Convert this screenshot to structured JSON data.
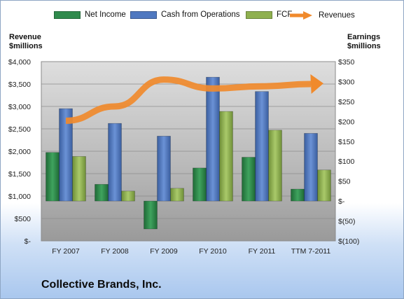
{
  "chart_data": {
    "type": "bar",
    "categories": [
      "FY 2007",
      "FY 2008",
      "FY 2009",
      "FY 2010",
      "FY 2011",
      "TTM 7-2011"
    ],
    "series": [
      {
        "name": "Net Income",
        "axis": "right",
        "color": "#2f8a4c",
        "values": [
          122,
          42,
          -70,
          83,
          110,
          30
        ]
      },
      {
        "name": "Cash from Operations",
        "axis": "right",
        "color": "#4f78c0",
        "values": [
          232,
          195,
          163,
          311,
          275,
          170
        ]
      },
      {
        "name": "FCF",
        "axis": "right",
        "color": "#8fb04f",
        "values": [
          112,
          25,
          32,
          225,
          178,
          78
        ]
      },
      {
        "name": "Revenues",
        "axis": "left",
        "type": "line",
        "color": "#f08a2c",
        "values": [
          2680,
          3000,
          3600,
          3400,
          3450,
          3500
        ]
      }
    ],
    "left_axis": {
      "title_line1": "Revenue",
      "title_line2": "$millions",
      "ylim": [
        0,
        4000
      ],
      "ticks": [
        0,
        500,
        1000,
        1500,
        2000,
        2500,
        3000,
        3500,
        4000
      ],
      "tick_labels": [
        "$-",
        "$500",
        "$1,000",
        "$1,500",
        "$2,000",
        "$2,500",
        "$3,000",
        "$3,500",
        "$4,000"
      ]
    },
    "right_axis": {
      "title_line1": "Earnings",
      "title_line2": "$millions",
      "ylim": [
        -100,
        350
      ],
      "ticks": [
        -100,
        -50,
        0,
        50,
        100,
        150,
        200,
        250,
        300,
        350
      ],
      "tick_labels": [
        "$(100)",
        "$(50)",
        "$-",
        "$50",
        "$100",
        "$150",
        "$200",
        "$250",
        "$300",
        "$350"
      ]
    },
    "legend_position": "top",
    "grid": true,
    "subtitle": "Collective Brands, Inc."
  }
}
